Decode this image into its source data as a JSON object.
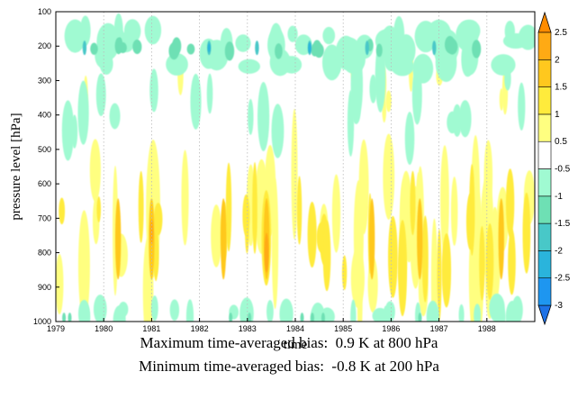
{
  "chart_data": {
    "type": "heatmap",
    "title": "",
    "xlabel": "time",
    "ylabel": "pressure level [hPa]",
    "x_range": [
      "1979-01",
      "1988-12"
    ],
    "x_ticks": [
      "1979",
      "1980",
      "1981",
      "1982",
      "1983",
      "1984",
      "1985",
      "1986",
      "1987",
      "1988"
    ],
    "y_range": [
      100,
      1000
    ],
    "y_ticks": [
      "100",
      "200",
      "300",
      "400",
      "500",
      "600",
      "700",
      "800",
      "900",
      "1000"
    ],
    "y_reversed": true,
    "colorbar": {
      "levels": [
        "-3",
        "-2.5",
        "-2",
        "-1.5",
        "-1",
        "-0.5",
        "0.5",
        "1",
        "1.5",
        "2",
        "2.5"
      ],
      "colors": [
        "#1e72e6",
        "#1e96f0",
        "#2ab4dc",
        "#48c8c8",
        "#6ee0b4",
        "#a0fad2",
        "#ffffff",
        "#ffff80",
        "#ffeb3c",
        "#ffc81e",
        "#ffaa14",
        "#ff8c00"
      ],
      "extend": "both"
    },
    "grid": false,
    "vertical_dotted_lines": true,
    "regions": [
      {
        "band": "150-250 hPa",
        "pattern": "negative bias, minimum near -1.5 to -2 at 200 hPa"
      },
      {
        "band": "500-950 hPa",
        "pattern": "positive bias, maximum near 1.5 to 2 at 700-850 hPa"
      },
      {
        "band": "950-1000 hPa",
        "pattern": "weak negative bias"
      }
    ]
  },
  "captions": {
    "max": "Maximum time-averaged bias:  0.9 K at 800 hPa",
    "min": "Minimum time-averaged bias:  -0.8 K at 200 hPa"
  }
}
